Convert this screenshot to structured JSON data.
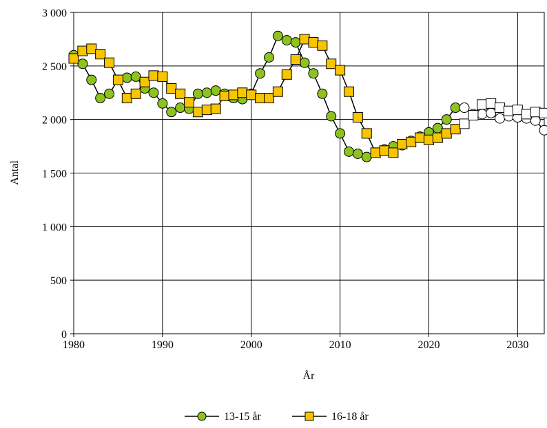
{
  "chart_data": {
    "type": "line",
    "title": "",
    "xlabel": "År",
    "ylabel": "Antal",
    "xlim": [
      1980,
      2033
    ],
    "ylim": [
      0,
      3000
    ],
    "x_ticks": [
      1980,
      1990,
      2000,
      2010,
      2020,
      2030
    ],
    "x_tick_labels": [
      "1980",
      "1990",
      "2000",
      "2010",
      "2020",
      "2030"
    ],
    "y_ticks": [
      0,
      500,
      1000,
      1500,
      2000,
      2500,
      3000
    ],
    "y_tick_labels": [
      "0",
      "500",
      "1 000",
      "1 500",
      "2 000",
      "2 500",
      "3 000"
    ],
    "grid": true,
    "legend_position": "bottom",
    "forecast_start_year": 2024,
    "series": [
      {
        "name": "13-15 år",
        "marker": "circle",
        "color": "#8DC21F",
        "forecast_color": "#ffffff",
        "x": [
          1980,
          1981,
          1982,
          1983,
          1984,
          1985,
          1986,
          1987,
          1988,
          1989,
          1990,
          1991,
          1992,
          1993,
          1994,
          1995,
          1996,
          1997,
          1998,
          1999,
          2000,
          2001,
          2002,
          2003,
          2004,
          2005,
          2006,
          2007,
          2008,
          2009,
          2010,
          2011,
          2012,
          2013,
          2014,
          2015,
          2016,
          2017,
          2018,
          2019,
          2020,
          2021,
          2022,
          2023,
          2024,
          2025,
          2026,
          2027,
          2028,
          2029,
          2030,
          2031,
          2032,
          2033
        ],
        "values": [
          2600,
          2520,
          2370,
          2200,
          2240,
          2370,
          2390,
          2400,
          2290,
          2250,
          2150,
          2070,
          2110,
          2100,
          2240,
          2250,
          2270,
          2240,
          2200,
          2190,
          2240,
          2430,
          2580,
          2780,
          2740,
          2720,
          2530,
          2430,
          2240,
          2030,
          1870,
          1700,
          1680,
          1650,
          1690,
          1720,
          1750,
          1760,
          1800,
          1840,
          1880,
          1920,
          2000,
          2110,
          2110,
          2050,
          2050,
          2060,
          2010,
          2030,
          2020,
          2010,
          1990,
          1900
        ]
      },
      {
        "name": "16-18 år",
        "marker": "square",
        "color": "#F9C500",
        "forecast_color": "#ffffff",
        "x": [
          1980,
          1981,
          1982,
          1983,
          1984,
          1985,
          1986,
          1987,
          1988,
          1989,
          1990,
          1991,
          1992,
          1993,
          1994,
          1995,
          1996,
          1997,
          1998,
          1999,
          2000,
          2001,
          2002,
          2003,
          2004,
          2005,
          2006,
          2007,
          2008,
          2009,
          2010,
          2011,
          2012,
          2013,
          2014,
          2015,
          2016,
          2017,
          2018,
          2019,
          2020,
          2021,
          2022,
          2023,
          2024,
          2025,
          2026,
          2027,
          2028,
          2029,
          2030,
          2031,
          2032,
          2033
        ],
        "values": [
          2570,
          2640,
          2660,
          2610,
          2530,
          2370,
          2200,
          2240,
          2350,
          2410,
          2400,
          2290,
          2240,
          2160,
          2070,
          2090,
          2100,
          2220,
          2230,
          2250,
          2230,
          2200,
          2200,
          2260,
          2420,
          2560,
          2750,
          2720,
          2690,
          2520,
          2460,
          2260,
          2020,
          1870,
          1690,
          1710,
          1690,
          1770,
          1790,
          1830,
          1810,
          1830,
          1870,
          1910,
          1960,
          2040,
          2140,
          2150,
          2110,
          2080,
          2090,
          2050,
          2070,
          2060
        ]
      }
    ]
  }
}
